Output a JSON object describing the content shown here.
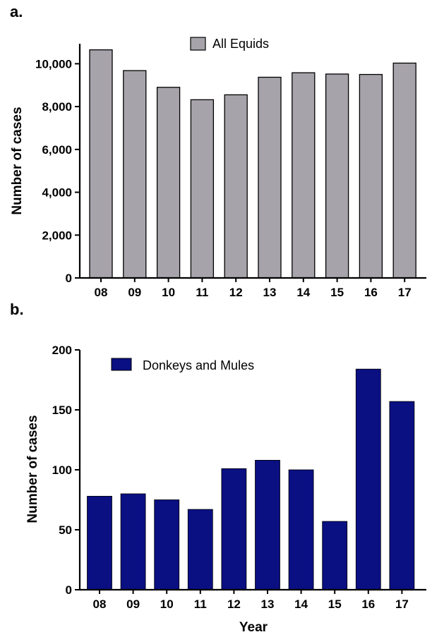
{
  "chart_data": [
    {
      "type": "bar",
      "panel_label": "a.",
      "categories": [
        "08",
        "09",
        "10",
        "11",
        "12",
        "13",
        "14",
        "15",
        "16",
        "17"
      ],
      "series": [
        {
          "name": "All Equids",
          "color": "#a7a3aa",
          "values": [
            10650,
            9680,
            8900,
            8320,
            8550,
            9370,
            9580,
            9520,
            9500,
            10030
          ]
        }
      ],
      "ylabel": "Number of cases",
      "xlabel": "",
      "ylim": [
        0,
        11000
      ],
      "yticks": [
        0,
        2000,
        4000,
        6000,
        8000,
        10000
      ],
      "ytick_labels": [
        "0",
        "2,000",
        "4,000",
        "6,000",
        "8,000",
        "10,000"
      ],
      "legend_position": "top-center",
      "grid": false
    },
    {
      "type": "bar",
      "panel_label": "b.",
      "categories": [
        "08",
        "09",
        "10",
        "11",
        "12",
        "13",
        "14",
        "15",
        "16",
        "17"
      ],
      "series": [
        {
          "name": "Donkeys and Mules",
          "color": "#0a0f82",
          "values": [
            78,
            80,
            75,
            67,
            101,
            108,
            100,
            57,
            184,
            157
          ]
        }
      ],
      "ylabel": "Number of cases",
      "xlabel": "Year",
      "ylim": [
        0,
        200
      ],
      "yticks": [
        0,
        50,
        100,
        150,
        200
      ],
      "ytick_labels": [
        "0",
        "50",
        "100",
        "150",
        "200"
      ],
      "legend_position": "top-left",
      "grid": false
    }
  ]
}
